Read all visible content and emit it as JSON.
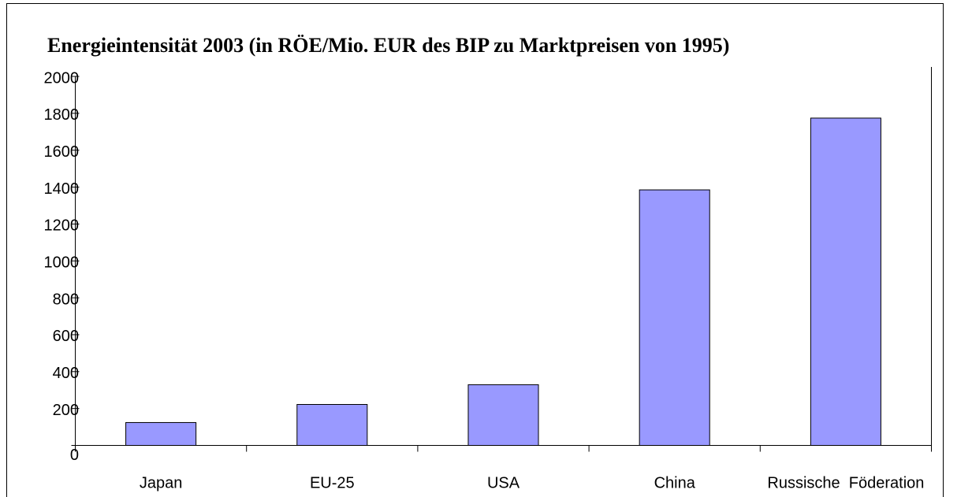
{
  "chart_data": {
    "type": "bar",
    "title": "Energieintensität 2003 (in RÖE/Mio. EUR des BIP zu Marktpreisen von 1995)",
    "categories": [
      "Japan",
      "EU-25",
      "USA",
      "China",
      "Russische  Föderation"
    ],
    "values": [
      124,
      222,
      329,
      1385,
      1774
    ],
    "color": "#9999ff",
    "ylim": [
      0,
      2000
    ],
    "yticks": [
      0,
      200,
      400,
      600,
      800,
      1000,
      1200,
      1400,
      1600,
      1800,
      2000
    ],
    "grid": false
  }
}
